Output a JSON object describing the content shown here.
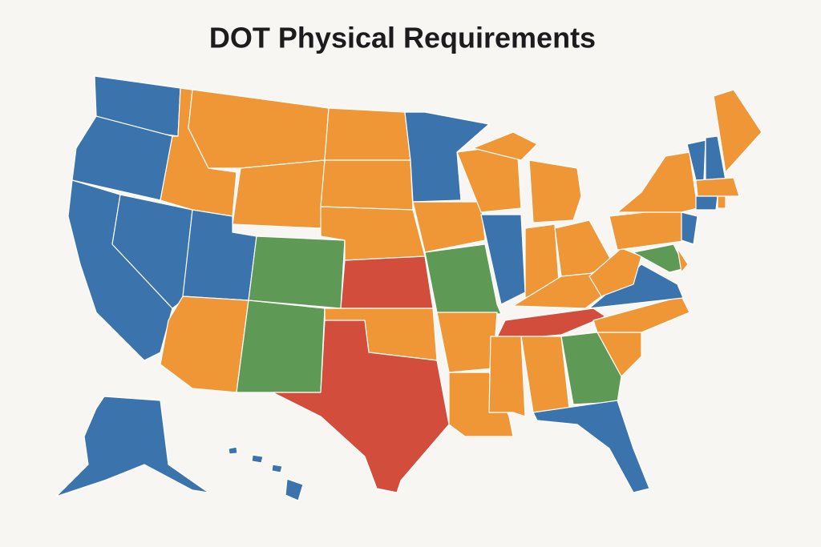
{
  "title": "DOT Physical Requirements",
  "palette": [
    "#3b73ac",
    "#ef9637",
    "#5e9a55",
    "#d24d3c"
  ],
  "background": "#f8f6f2"
}
